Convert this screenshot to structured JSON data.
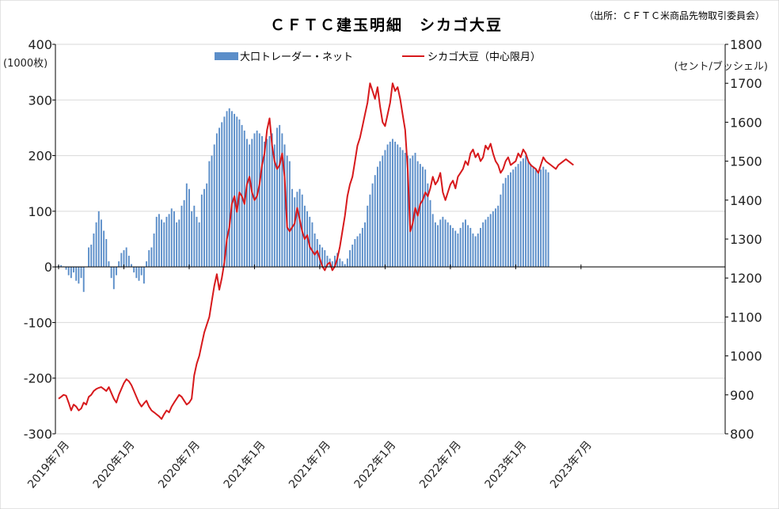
{
  "chart_data": {
    "type": "bar+line",
    "title": "ＣＦＴＣ建玉明細　シカゴ大豆",
    "source": "（出所：ＣＦＴＣ米商品先物取引委員会）",
    "y_left": {
      "unit": "(1000枚)",
      "ylim": [
        -300,
        400
      ],
      "ticks": [
        400,
        300,
        200,
        100,
        0,
        -100,
        -200,
        -300
      ]
    },
    "y_right": {
      "unit": "(セント/ブッシェル)",
      "ylim": [
        800,
        1800
      ],
      "ticks": [
        1800,
        1700,
        1600,
        1500,
        1400,
        1300,
        1200,
        1100,
        1000,
        900,
        800
      ]
    },
    "x_labels": [
      "2019年7月",
      "2020年1月",
      "2020年7月",
      "2021年1月",
      "2021年7月",
      "2022年1月",
      "2022年7月",
      "2023年1月",
      "2023年7月"
    ],
    "x_start": 0,
    "x_end": 208,
    "label_positions": [
      0,
      26,
      52,
      78,
      104,
      130,
      156,
      182,
      208
    ],
    "grid": true,
    "series": [
      {
        "name": "大口トレーダー・ネット",
        "type": "bar",
        "color": "#5b8ec9",
        "values": [
          2,
          3,
          1,
          -5,
          -15,
          -20,
          -10,
          -25,
          -30,
          -20,
          -45,
          0,
          35,
          40,
          60,
          80,
          100,
          85,
          65,
          50,
          10,
          -20,
          -40,
          -15,
          10,
          25,
          30,
          35,
          20,
          5,
          -10,
          -20,
          -25,
          -15,
          -30,
          10,
          30,
          35,
          60,
          90,
          95,
          85,
          80,
          90,
          95,
          105,
          100,
          80,
          85,
          110,
          120,
          150,
          140,
          100,
          110,
          90,
          80,
          130,
          140,
          150,
          190,
          200,
          220,
          240,
          250,
          260,
          270,
          280,
          285,
          280,
          275,
          270,
          265,
          255,
          245,
          230,
          220,
          230,
          240,
          245,
          240,
          235,
          225,
          230,
          235,
          240,
          220,
          250,
          255,
          240,
          220,
          200,
          190,
          140,
          125,
          135,
          140,
          130,
          110,
          100,
          90,
          80,
          60,
          50,
          40,
          35,
          30,
          20,
          15,
          10,
          20,
          25,
          15,
          10,
          5,
          15,
          30,
          40,
          50,
          55,
          60,
          70,
          80,
          110,
          130,
          150,
          165,
          180,
          190,
          200,
          210,
          220,
          225,
          230,
          225,
          220,
          215,
          210,
          205,
          200,
          195,
          200,
          205,
          190,
          185,
          180,
          175,
          150,
          120,
          95,
          80,
          75,
          85,
          90,
          85,
          80,
          75,
          70,
          65,
          60,
          70,
          80,
          85,
          75,
          70,
          60,
          55,
          60,
          70,
          80,
          85,
          90,
          95,
          100,
          105,
          110,
          130,
          150,
          160,
          165,
          170,
          175,
          180,
          185,
          190,
          195,
          200,
          190,
          185,
          180,
          175,
          170,
          175,
          180,
          175,
          170
        ],
        "note": "weekly net position, values in 1000 contracts (data ends around 2023年4月)"
      },
      {
        "name": "シカゴ大豆（中心限月）",
        "type": "line",
        "color": "#d7191c",
        "values": [
          890,
          895,
          900,
          898,
          880,
          860,
          875,
          870,
          860,
          865,
          880,
          875,
          895,
          900,
          910,
          915,
          918,
          920,
          915,
          910,
          920,
          905,
          890,
          880,
          900,
          915,
          930,
          940,
          935,
          925,
          910,
          895,
          880,
          870,
          878,
          885,
          870,
          860,
          855,
          850,
          845,
          838,
          850,
          860,
          855,
          870,
          880,
          890,
          900,
          895,
          885,
          875,
          880,
          890,
          950,
          980,
          1000,
          1030,
          1060,
          1080,
          1100,
          1140,
          1180,
          1210,
          1170,
          1200,
          1240,
          1300,
          1330,
          1390,
          1410,
          1370,
          1420,
          1410,
          1390,
          1440,
          1460,
          1420,
          1400,
          1410,
          1440,
          1490,
          1520,
          1580,
          1610,
          1540,
          1500,
          1480,
          1490,
          1520,
          1460,
          1330,
          1320,
          1330,
          1340,
          1380,
          1350,
          1320,
          1300,
          1310,
          1280,
          1270,
          1260,
          1270,
          1250,
          1230,
          1220,
          1235,
          1240,
          1220,
          1230,
          1250,
          1280,
          1320,
          1360,
          1410,
          1440,
          1460,
          1500,
          1540,
          1560,
          1590,
          1620,
          1650,
          1700,
          1680,
          1660,
          1690,
          1640,
          1600,
          1590,
          1620,
          1650,
          1700,
          1680,
          1690,
          1660,
          1620,
          1580,
          1480,
          1320,
          1340,
          1380,
          1360,
          1390,
          1400,
          1420,
          1410,
          1430,
          1460,
          1440,
          1450,
          1470,
          1420,
          1400,
          1420,
          1440,
          1450,
          1430,
          1460,
          1470,
          1480,
          1500,
          1490,
          1520,
          1530,
          1510,
          1520,
          1500,
          1510,
          1540,
          1530,
          1545,
          1520,
          1500,
          1490,
          1470,
          1480,
          1500,
          1510,
          1490,
          1495,
          1500,
          1520,
          1510,
          1530,
          1520,
          1500,
          1490,
          1485,
          1480,
          1470,
          1490,
          1510,
          1500,
          1495,
          1490,
          1485,
          1480,
          1490,
          1495,
          1500,
          1505,
          1500,
          1495,
          1490
        ],
        "note": "cents per bushel"
      }
    ],
    "legend": {
      "placement": "top",
      "items": [
        "大口トレーダー・ネット",
        "シカゴ大豆（中心限月）"
      ]
    }
  }
}
